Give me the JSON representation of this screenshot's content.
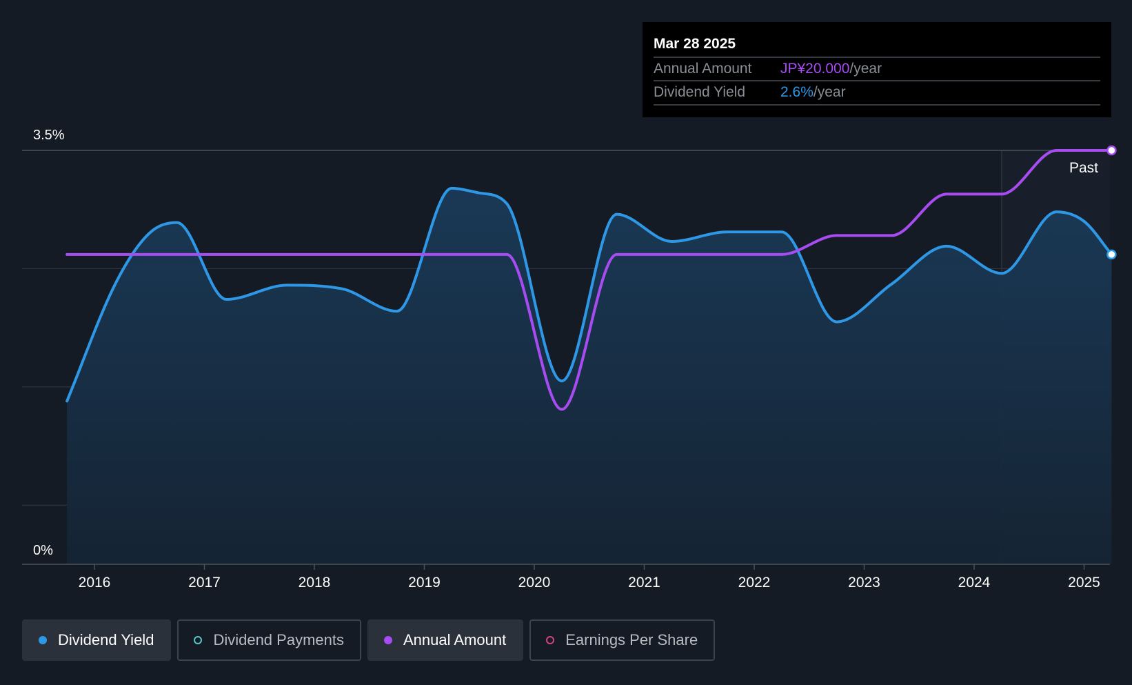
{
  "tooltip": {
    "date": "Mar 28 2025",
    "rows": [
      {
        "label": "Annual Amount",
        "value": "JP¥20.000",
        "unit": "/year",
        "color": "#a64cf0"
      },
      {
        "label": "Dividend Yield",
        "value": "2.6%",
        "unit": "/year",
        "color": "#2f98e6"
      }
    ]
  },
  "past_label": "Past",
  "legend": [
    {
      "label": "Dividend Yield",
      "color": "#2f98e6",
      "active": true,
      "filled": true
    },
    {
      "label": "Dividend Payments",
      "color": "#56c9c1",
      "active": false,
      "filled": false
    },
    {
      "label": "Annual Amount",
      "color": "#a64cf0",
      "active": true,
      "filled": true
    },
    {
      "label": "Earnings Per Share",
      "color": "#d1457f",
      "active": false,
      "filled": false
    }
  ],
  "chart_data": {
    "type": "line",
    "x_ticks": [
      "2016",
      "2017",
      "2018",
      "2019",
      "2020",
      "2021",
      "2022",
      "2023",
      "2024",
      "2025"
    ],
    "y_ticks": [
      "0%",
      "3.5%"
    ],
    "ylim": [
      0,
      3.5
    ],
    "xlim": [
      2015.6,
      2025.25
    ],
    "forecast_start": 2024.25,
    "grid": true,
    "series": [
      {
        "name": "Dividend Yield",
        "color": "#2f98e6",
        "area": true,
        "points": [
          [
            2015.75,
            1.38
          ],
          [
            2016.2,
            2.39
          ],
          [
            2016.5,
            2.8
          ],
          [
            2016.75,
            2.89
          ],
          [
            2017.2,
            2.24
          ],
          [
            2017.75,
            2.36
          ],
          [
            2018.25,
            2.33
          ],
          [
            2018.75,
            2.14
          ],
          [
            2019.25,
            3.18
          ],
          [
            2019.5,
            3.14
          ],
          [
            2019.75,
            3.05
          ],
          [
            2020.25,
            1.55
          ],
          [
            2020.75,
            2.96
          ],
          [
            2021.25,
            2.73
          ],
          [
            2021.75,
            2.81
          ],
          [
            2022.25,
            2.81
          ],
          [
            2022.75,
            2.05
          ],
          [
            2023.25,
            2.37
          ],
          [
            2023.75,
            2.69
          ],
          [
            2024.25,
            2.46
          ],
          [
            2024.75,
            2.98
          ],
          [
            2025.0,
            2.9
          ],
          [
            2025.25,
            2.62
          ]
        ]
      },
      {
        "name": "Annual Amount",
        "color": "#a64cf0",
        "area": false,
        "points": [
          [
            2015.75,
            2.62
          ],
          [
            2019.75,
            2.62
          ],
          [
            2020.25,
            1.31
          ],
          [
            2020.75,
            2.62
          ],
          [
            2022.25,
            2.62
          ],
          [
            2022.75,
            2.78
          ],
          [
            2023.25,
            2.78
          ],
          [
            2023.75,
            3.13
          ],
          [
            2024.25,
            3.13
          ],
          [
            2024.75,
            3.5
          ],
          [
            2025.25,
            3.5
          ]
        ]
      }
    ]
  }
}
